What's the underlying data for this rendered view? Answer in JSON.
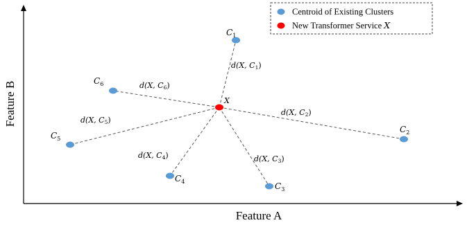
{
  "axes": {
    "x_label": "Feature A",
    "y_label": "Feature B"
  },
  "legend": {
    "items": [
      {
        "label": "Centroid of Existing Clusters",
        "color": "#5b9bd5",
        "marker": "blue-ellipse-icon"
      },
      {
        "label": "New Transformer Service ",
        "math": "X",
        "color": "#ff0000",
        "marker": "red-ellipse-icon"
      }
    ]
  },
  "colors": {
    "centroid": "#5b9bd5",
    "new_service": "#ff0000",
    "line": "#555555"
  },
  "new_service": {
    "label": "X"
  },
  "centroids": [
    {
      "id": "C1",
      "label": "C",
      "sub": "1",
      "distance_label": "d(X, C",
      "distance_sub": "1",
      "distance_close": ")"
    },
    {
      "id": "C2",
      "label": "C",
      "sub": "2",
      "distance_label": "d(X, C",
      "distance_sub": "2",
      "distance_close": ")"
    },
    {
      "id": "C3",
      "label": "C",
      "sub": "3",
      "distance_label": "d(X, C",
      "distance_sub": "3",
      "distance_close": ")"
    },
    {
      "id": "C4",
      "label": "C",
      "sub": "4",
      "distance_label": "d(X, C",
      "distance_sub": "4",
      "distance_close": ")"
    },
    {
      "id": "C5",
      "label": "C",
      "sub": "5",
      "distance_label": "d(X, C",
      "distance_sub": "5",
      "distance_close": ")"
    },
    {
      "id": "C6",
      "label": "C",
      "sub": "6",
      "distance_label": "d(X, C",
      "distance_sub": "6",
      "distance_close": ")"
    }
  ]
}
